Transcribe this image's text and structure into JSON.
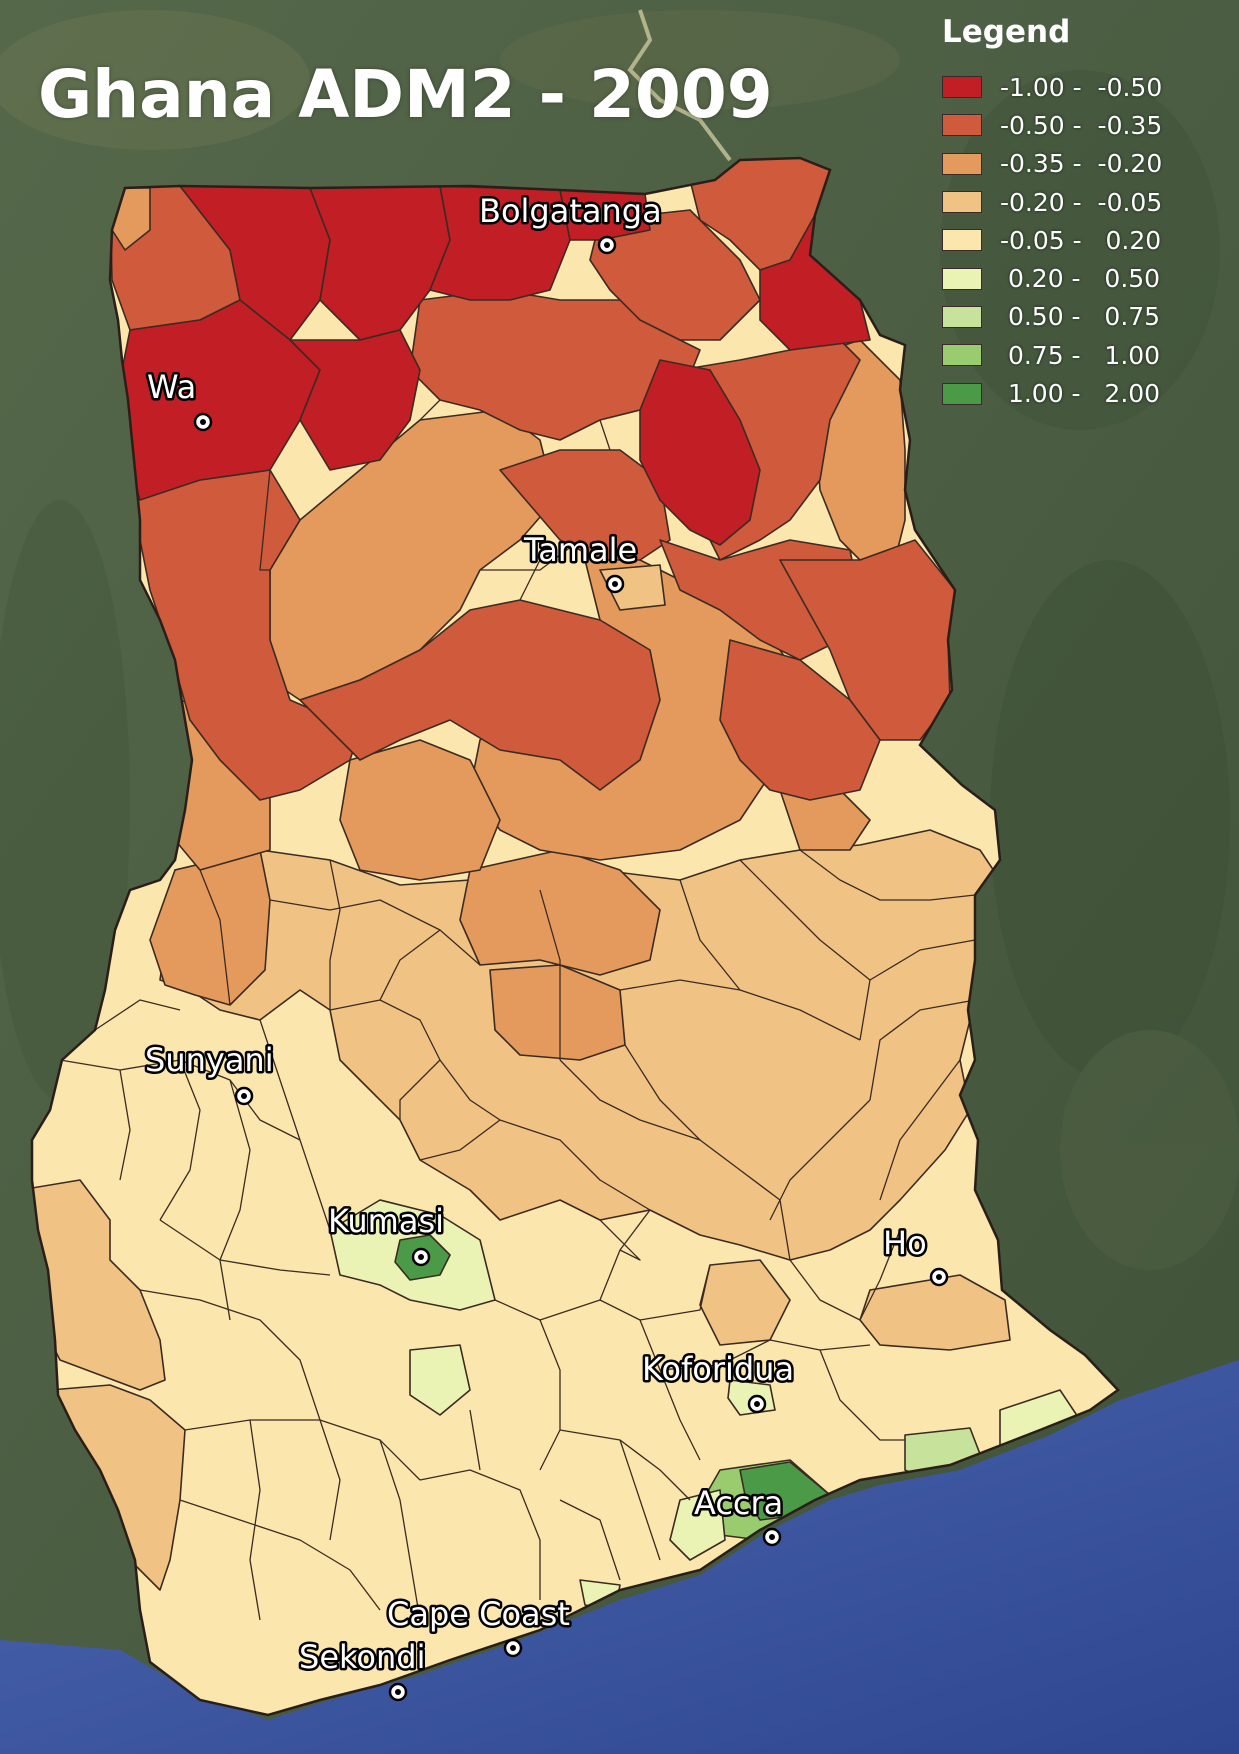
{
  "title": "Ghana ADM2 - 2009",
  "legend": {
    "title": "Legend",
    "items": [
      {
        "label": "-1.00 -  -0.50",
        "color": "#c21e26"
      },
      {
        "label": "-0.50 -  -0.35",
        "color": "#d05a3c"
      },
      {
        "label": "-0.35 -  -0.20",
        "color": "#e49a5c"
      },
      {
        "label": "-0.20 -  -0.05",
        "color": "#f0c384"
      },
      {
        "label": "-0.05 -   0.20",
        "color": "#fbe6ad"
      },
      {
        "label": " 0.20 -   0.50",
        "color": "#eaf3b4"
      },
      {
        "label": " 0.50 -   0.75",
        "color": "#c7e29a"
      },
      {
        "label": " 0.75 -   1.00",
        "color": "#99cc6e"
      },
      {
        "label": " 1.00 -   2.00",
        "color": "#4a9a48"
      }
    ]
  },
  "cities": [
    {
      "name": "Bolgatanga"
    },
    {
      "name": "Wa"
    },
    {
      "name": "Tamale"
    },
    {
      "name": "Sunyani"
    },
    {
      "name": "Kumasi"
    },
    {
      "name": "Ho"
    },
    {
      "name": "Koforidua"
    },
    {
      "name": "Accra"
    },
    {
      "name": "Cape Coast"
    },
    {
      "name": "Sekondi"
    }
  ],
  "colors": {
    "land_background": "#4f6244",
    "ocean": "#3f5aa6",
    "boundary": "#3b2b22"
  }
}
